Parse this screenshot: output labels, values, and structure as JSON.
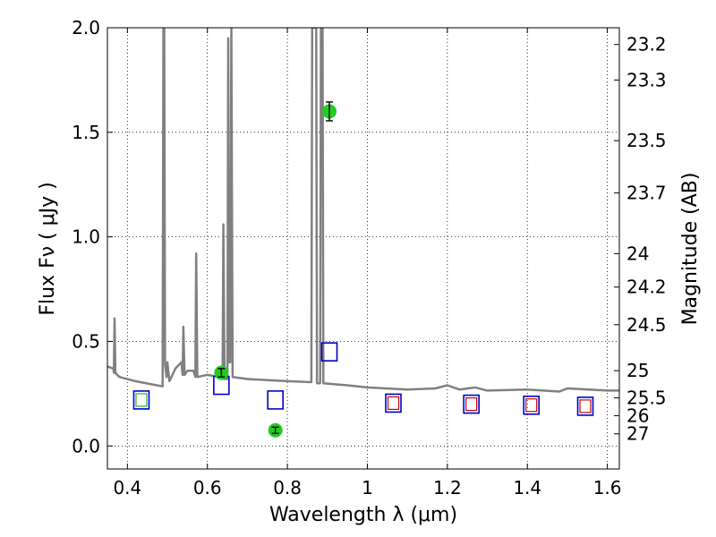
{
  "chart_data": {
    "type": "scatter",
    "xlabel": "Wavelength  λ (μm)",
    "ylabel": "Flux  Fν  ( μJy )",
    "y2label": "Magnitude (AB)",
    "xlim": [
      0.35,
      1.63
    ],
    "ylim": [
      -0.11,
      2.0
    ],
    "grid": true,
    "x_ticks": [
      0.4,
      0.6,
      0.8,
      1.0,
      1.2,
      1.4,
      1.6
    ],
    "x_tick_labels": [
      "0.4",
      "0.6",
      "0.8",
      "1",
      "1.2",
      "1.4",
      "1.6"
    ],
    "y_ticks": [
      0.0,
      0.5,
      1.0,
      1.5,
      2.0
    ],
    "y_tick_labels": [
      "0.0",
      "0.5",
      "1.0",
      "1.5",
      "2.0"
    ],
    "y2_ticks": [
      {
        "label": "23.2",
        "flux": 1.92
      },
      {
        "label": "23.3",
        "flux": 1.75
      },
      {
        "label": "23.5",
        "flux": 1.46
      },
      {
        "label": "23.7",
        "flux": 1.21
      },
      {
        "label": "24",
        "flux": 0.92
      },
      {
        "label": "24.2",
        "flux": 0.76
      },
      {
        "label": "24.5",
        "flux": 0.58
      },
      {
        "label": "25",
        "flux": 0.36
      },
      {
        "label": "25.5",
        "flux": 0.23
      },
      {
        "label": "26",
        "flux": 0.145
      },
      {
        "label": "27",
        "flux": 0.058
      }
    ],
    "series": [
      {
        "style": "line",
        "color": "#808080",
        "points": [
          [
            0.35,
            0.38
          ],
          [
            0.365,
            0.37
          ],
          [
            0.366,
            0.35
          ],
          [
            0.368,
            0.61
          ],
          [
            0.37,
            0.35
          ],
          [
            0.38,
            0.33
          ],
          [
            0.42,
            0.31
          ],
          [
            0.46,
            0.295
          ],
          [
            0.488,
            0.285
          ],
          [
            0.49,
            2.0
          ],
          [
            0.492,
            2.0
          ],
          [
            0.494,
            0.39
          ],
          [
            0.498,
            0.33
          ],
          [
            0.5,
            0.4
          ],
          [
            0.505,
            0.31
          ],
          [
            0.52,
            0.37
          ],
          [
            0.535,
            0.4
          ],
          [
            0.538,
            0.34
          ],
          [
            0.54,
            0.57
          ],
          [
            0.543,
            0.34
          ],
          [
            0.55,
            0.36
          ],
          [
            0.565,
            0.36
          ],
          [
            0.57,
            0.33
          ],
          [
            0.572,
            0.92
          ],
          [
            0.575,
            0.33
          ],
          [
            0.6,
            0.34
          ],
          [
            0.63,
            0.33
          ],
          [
            0.638,
            0.32
          ],
          [
            0.64,
            1.06
          ],
          [
            0.643,
            0.32
          ],
          [
            0.65,
            0.32
          ],
          [
            0.652,
            1.95
          ],
          [
            0.654,
            0.4
          ],
          [
            0.657,
            0.4
          ],
          [
            0.66,
            2.0
          ],
          [
            0.663,
            0.33
          ],
          [
            0.7,
            0.32
          ],
          [
            0.8,
            0.31
          ],
          [
            0.86,
            0.305
          ],
          [
            0.862,
            2.0
          ],
          [
            0.872,
            2.0
          ],
          [
            0.874,
            0.3
          ],
          [
            0.882,
            0.3
          ],
          [
            0.884,
            2.0
          ],
          [
            0.888,
            2.0
          ],
          [
            0.89,
            0.3
          ],
          [
            0.95,
            0.29
          ],
          [
            1.0,
            0.28
          ],
          [
            1.1,
            0.27
          ],
          [
            1.17,
            0.275
          ],
          [
            1.2,
            0.29
          ],
          [
            1.23,
            0.27
          ],
          [
            1.27,
            0.28
          ],
          [
            1.3,
            0.265
          ],
          [
            1.4,
            0.27
          ],
          [
            1.48,
            0.26
          ],
          [
            1.5,
            0.275
          ],
          [
            1.6,
            0.265
          ],
          [
            1.63,
            0.265
          ]
        ]
      },
      {
        "style": "square",
        "color": "#0000cc",
        "points": [
          [
            0.435,
            0.22
          ],
          [
            0.635,
            0.29
          ],
          [
            0.77,
            0.22
          ],
          [
            0.905,
            0.45
          ],
          [
            1.065,
            0.205
          ],
          [
            1.26,
            0.2
          ],
          [
            1.41,
            0.195
          ],
          [
            1.545,
            0.19
          ]
        ]
      },
      {
        "style": "square-small",
        "color": "#cc0000",
        "points": [
          [
            1.065,
            0.205
          ],
          [
            1.26,
            0.2
          ],
          [
            1.41,
            0.195
          ],
          [
            1.545,
            0.19
          ]
        ]
      },
      {
        "style": "square-small",
        "color": "#22bb22",
        "points": [
          [
            0.435,
            0.22
          ]
        ]
      },
      {
        "style": "errorbar-circle",
        "color": "#22cc22",
        "points": [
          [
            0.635,
            0.35,
            0.02
          ],
          [
            0.77,
            0.075,
            0.015
          ],
          [
            0.905,
            1.6,
            0.045
          ]
        ]
      }
    ]
  }
}
